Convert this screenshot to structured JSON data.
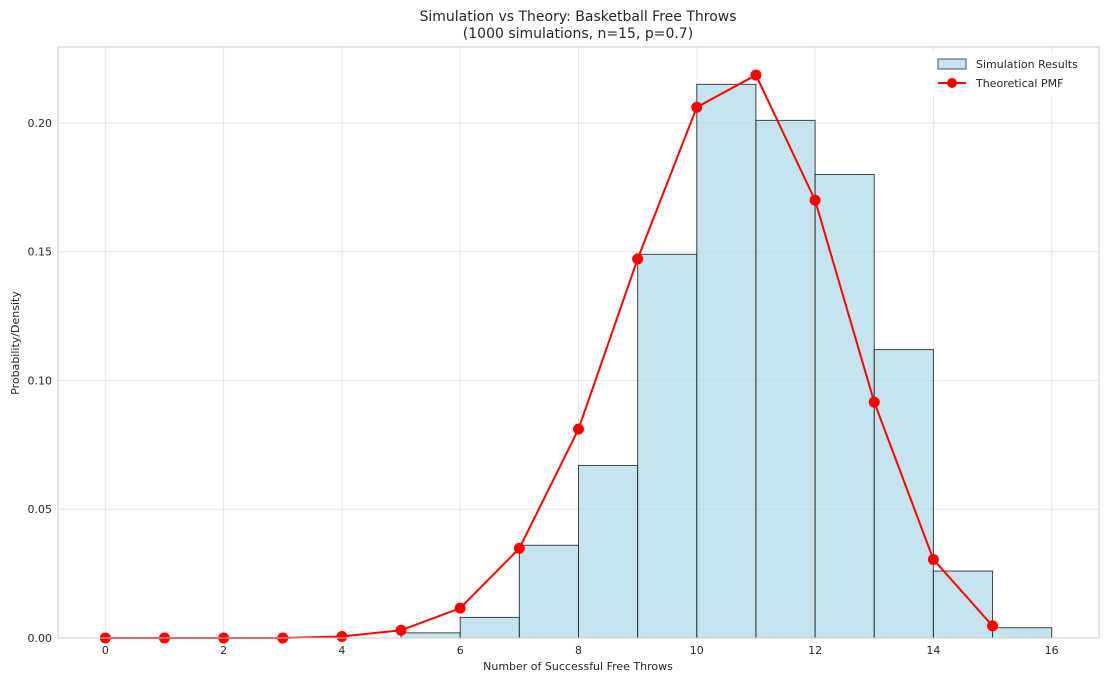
{
  "chart_data": {
    "type": "bar",
    "title_line1": "Simulation vs Theory: Basketball Free Throws",
    "title_line2": "(1000 simulations, n=15, p=0.7)",
    "xlabel": "Number of Successful Free Throws",
    "ylabel": "Probability/Density",
    "xlim": [
      -0.8,
      16.8
    ],
    "ylim": [
      0,
      0.2295
    ],
    "xticks": [
      0,
      2,
      4,
      6,
      8,
      10,
      12,
      14,
      16
    ],
    "yticks": [
      0.0,
      0.05,
      0.1,
      0.15,
      0.2
    ],
    "ytick_labels": [
      "0.00",
      "0.05",
      "0.10",
      "0.15",
      "0.20"
    ],
    "grid": true,
    "legend_position": "top-right",
    "histogram": {
      "name": "Simulation Results",
      "color": "#add8e6",
      "edge_color": "#262626",
      "bins": [
        {
          "left": 5,
          "right": 6,
          "value": 0.002
        },
        {
          "left": 6,
          "right": 7,
          "value": 0.008
        },
        {
          "left": 7,
          "right": 8,
          "value": 0.036
        },
        {
          "left": 8,
          "right": 9,
          "value": 0.067
        },
        {
          "left": 9,
          "right": 10,
          "value": 0.149
        },
        {
          "left": 10,
          "right": 11,
          "value": 0.215
        },
        {
          "left": 11,
          "right": 12,
          "value": 0.201
        },
        {
          "left": 12,
          "right": 13,
          "value": 0.18
        },
        {
          "left": 13,
          "right": 14,
          "value": 0.112
        },
        {
          "left": 14,
          "right": 15,
          "value": 0.026
        },
        {
          "left": 15,
          "right": 16,
          "value": 0.004
        }
      ]
    },
    "line": {
      "name": "Theoretical PMF",
      "color": "#ff0000",
      "x": [
        0,
        1,
        2,
        3,
        4,
        5,
        6,
        7,
        8,
        9,
        10,
        11,
        12,
        13,
        14,
        15
      ],
      "y": [
        0.0,
        0.0,
        0.0,
        0.0,
        0.0006,
        0.003,
        0.0116,
        0.0348,
        0.0811,
        0.1472,
        0.2061,
        0.2186,
        0.17,
        0.0916,
        0.0305,
        0.0047
      ]
    }
  }
}
